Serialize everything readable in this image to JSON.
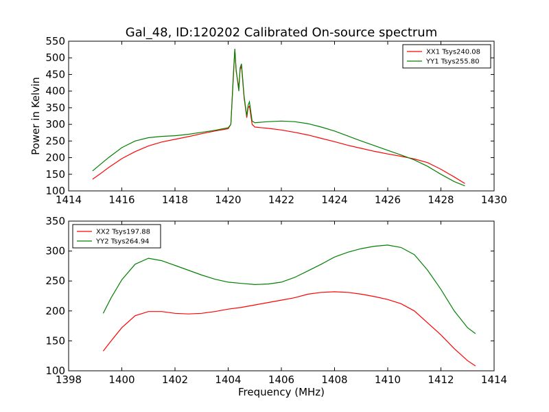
{
  "chart_data": [
    {
      "type": "line",
      "title": "Gal_48, ID:120202 Calibrated On-source spectrum",
      "xlabel": "",
      "ylabel": "Power in Kelvin",
      "xlim": [
        1414,
        1430
      ],
      "ylim": [
        100,
        550
      ],
      "xticks": [
        "1414",
        "1416",
        "1418",
        "1420",
        "1422",
        "1424",
        "1426",
        "1428",
        "1430"
      ],
      "yticks": [
        "100",
        "150",
        "200",
        "250",
        "300",
        "350",
        "400",
        "450",
        "500",
        "550"
      ],
      "grid": false,
      "legend": "top-right",
      "series": [
        {
          "name": "XX1 Tsys240.08",
          "color": "#ff0000",
          "x": [
            1414.9,
            1415.2,
            1415.5,
            1416.0,
            1416.5,
            1417.0,
            1417.5,
            1418.0,
            1418.5,
            1419.0,
            1419.5,
            1420.0,
            1420.1,
            1420.2,
            1420.25,
            1420.3,
            1420.4,
            1420.45,
            1420.5,
            1420.6,
            1420.7,
            1420.75,
            1420.8,
            1420.9,
            1421.0,
            1421.5,
            1422.0,
            1422.5,
            1423.0,
            1423.5,
            1424.0,
            1424.5,
            1425.0,
            1425.5,
            1426.0,
            1426.5,
            1427.0,
            1427.5,
            1428.0,
            1428.5,
            1428.9
          ],
          "y": [
            135,
            152,
            170,
            197,
            218,
            235,
            247,
            255,
            263,
            272,
            280,
            287,
            300,
            450,
            525,
            460,
            410,
            465,
            475,
            380,
            320,
            350,
            355,
            300,
            292,
            288,
            283,
            276,
            268,
            258,
            248,
            237,
            228,
            219,
            211,
            204,
            196,
            185,
            165,
            142,
            122
          ]
        },
        {
          "name": "YY1 Tsys255.80",
          "color": "#008000",
          "x": [
            1414.9,
            1415.2,
            1415.5,
            1416.0,
            1416.5,
            1417.0,
            1417.5,
            1418.0,
            1418.5,
            1419.0,
            1419.5,
            1420.0,
            1420.1,
            1420.2,
            1420.25,
            1420.3,
            1420.4,
            1420.45,
            1420.5,
            1420.6,
            1420.7,
            1420.75,
            1420.8,
            1420.9,
            1421.0,
            1421.5,
            1422.0,
            1422.5,
            1423.0,
            1423.5,
            1424.0,
            1424.5,
            1425.0,
            1425.5,
            1426.0,
            1426.5,
            1427.0,
            1427.5,
            1428.0,
            1428.5,
            1428.9
          ],
          "y": [
            160,
            180,
            200,
            230,
            250,
            260,
            264,
            266,
            270,
            276,
            282,
            290,
            300,
            460,
            527,
            465,
            400,
            470,
            482,
            385,
            325,
            358,
            368,
            310,
            305,
            308,
            310,
            308,
            302,
            292,
            280,
            265,
            250,
            236,
            222,
            208,
            193,
            174,
            150,
            128,
            115
          ]
        }
      ]
    },
    {
      "type": "line",
      "title": "",
      "xlabel": "Frequency (MHz)",
      "ylabel": "",
      "xlim": [
        1398,
        1414
      ],
      "ylim": [
        100,
        350
      ],
      "xticks": [
        "1398",
        "1400",
        "1402",
        "1404",
        "1406",
        "1408",
        "1410",
        "1412",
        "1414"
      ],
      "yticks": [
        "100",
        "150",
        "200",
        "250",
        "300",
        "350"
      ],
      "grid": false,
      "legend": "top-left",
      "series": [
        {
          "name": "XX2 Tsys197.88",
          "color": "#ff0000",
          "x": [
            1399.3,
            1399.6,
            1400.0,
            1400.5,
            1401.0,
            1401.5,
            1402.0,
            1402.5,
            1403.0,
            1403.5,
            1404.0,
            1404.5,
            1405.0,
            1405.5,
            1406.0,
            1406.5,
            1407.0,
            1407.5,
            1408.0,
            1408.5,
            1409.0,
            1409.5,
            1410.0,
            1410.5,
            1411.0,
            1411.5,
            1412.0,
            1412.5,
            1413.0,
            1413.3
          ],
          "y": [
            133,
            150,
            172,
            192,
            199,
            199,
            196,
            195,
            196,
            199,
            203,
            206,
            210,
            214,
            218,
            222,
            228,
            231,
            232,
            231,
            228,
            224,
            219,
            212,
            200,
            180,
            160,
            137,
            117,
            108
          ]
        },
        {
          "name": "YY2 Tsys264.94",
          "color": "#008000",
          "x": [
            1399.3,
            1399.6,
            1400.0,
            1400.5,
            1401.0,
            1401.5,
            1402.0,
            1402.5,
            1403.0,
            1403.5,
            1404.0,
            1404.5,
            1405.0,
            1405.5,
            1406.0,
            1406.5,
            1407.0,
            1407.5,
            1408.0,
            1408.5,
            1409.0,
            1409.5,
            1410.0,
            1410.5,
            1411.0,
            1411.5,
            1412.0,
            1412.5,
            1413.0,
            1413.3
          ],
          "y": [
            196,
            222,
            252,
            278,
            288,
            284,
            276,
            268,
            260,
            253,
            248,
            246,
            244,
            245,
            248,
            256,
            267,
            278,
            290,
            298,
            304,
            308,
            310,
            306,
            294,
            268,
            236,
            200,
            172,
            162
          ]
        }
      ]
    }
  ]
}
